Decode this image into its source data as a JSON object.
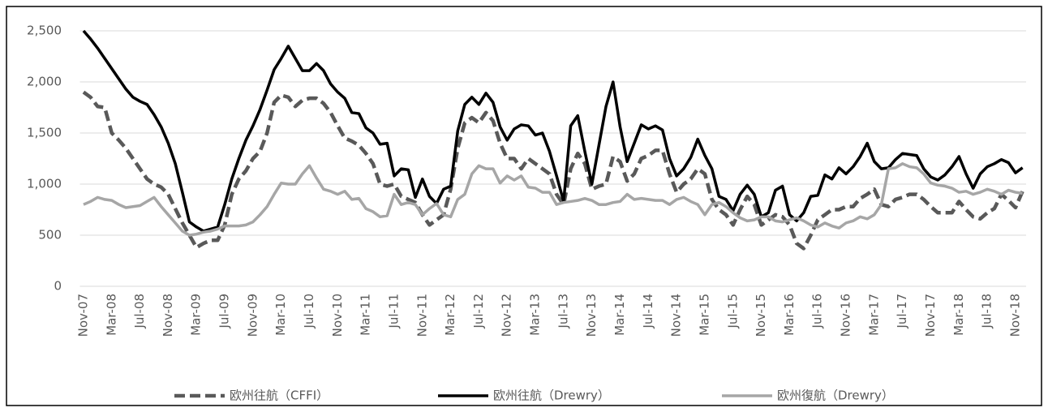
{
  "chart_data": {
    "type": "line",
    "categories": [
      "Nov-07",
      null,
      null,
      null,
      "Mar-08",
      null,
      null,
      null,
      "Jul-08",
      null,
      null,
      null,
      "Nov-08",
      null,
      null,
      null,
      "Mar-09",
      null,
      null,
      null,
      "Jul-09",
      null,
      null,
      null,
      "Nov-09",
      null,
      null,
      null,
      "Mar-10",
      null,
      null,
      null,
      "Jul-10",
      null,
      null,
      null,
      "Nov-10",
      null,
      null,
      null,
      "Mar-11",
      null,
      null,
      null,
      "Jul-11",
      null,
      null,
      null,
      "Nov-11",
      null,
      null,
      null,
      "Mar-12",
      null,
      null,
      null,
      "Jul-12",
      null,
      null,
      null,
      "Nov-12",
      null,
      null,
      null,
      "Mar-13",
      null,
      null,
      null,
      "Jul-13",
      null,
      null,
      null,
      "Nov-13",
      null,
      null,
      null,
      "Mar-14",
      null,
      null,
      null,
      "Jul-14",
      null,
      null,
      null,
      "Nov-14",
      null,
      null,
      null,
      "Mar-15",
      null,
      null,
      null,
      "Jul-15",
      null,
      null,
      null,
      "Nov-15",
      null,
      null,
      null,
      "Mar-16",
      null,
      null,
      null,
      "Jul-16",
      null,
      null,
      null,
      "Nov-16",
      null,
      null,
      null,
      "Mar-17",
      null,
      null,
      null,
      "Jul-17",
      null,
      null,
      null,
      "Nov-17",
      null,
      null,
      null,
      "Mar-18",
      null,
      null,
      null,
      "Jul-18",
      null,
      null,
      null,
      "Nov-18",
      null
    ],
    "series": [
      {
        "name": "欧州往航（CFFI）",
        "color": "#595959",
        "dash": true,
        "values": [
          1900,
          1850,
          1760,
          1750,
          1500,
          1430,
          1350,
          1250,
          1150,
          1050,
          1000,
          970,
          900,
          760,
          620,
          500,
          380,
          420,
          450,
          450,
          600,
          900,
          1050,
          1130,
          1250,
          1320,
          1500,
          1800,
          1870,
          1850,
          1760,
          1820,
          1840,
          1840,
          1790,
          1700,
          1570,
          1450,
          1420,
          1380,
          1300,
          1200,
          1000,
          980,
          1000,
          880,
          850,
          820,
          700,
          600,
          650,
          700,
          950,
          1350,
          1600,
          1650,
          1600,
          1700,
          1620,
          1400,
          1250,
          1250,
          1150,
          1250,
          1200,
          1150,
          1100,
          900,
          800,
          1150,
          1300,
          1200,
          950,
          980,
          1000,
          1270,
          1220,
          1030,
          1100,
          1250,
          1280,
          1330,
          1330,
          1100,
          920,
          1000,
          1050,
          1150,
          1100,
          850,
          750,
          700,
          600,
          750,
          880,
          800,
          600,
          650,
          700,
          680,
          600,
          420,
          370,
          500,
          650,
          700,
          750,
          750,
          780,
          780,
          860,
          900,
          950,
          800,
          780,
          850,
          870,
          900,
          900,
          850,
          780,
          720,
          720,
          720,
          830,
          750,
          680,
          660,
          720,
          760,
          900,
          840,
          770,
          930
        ]
      },
      {
        "name": "欧州往航（Drewry）",
        "color": "#000000",
        "dash": false,
        "values": [
          2500,
          2420,
          2330,
          2230,
          2130,
          2030,
          1930,
          1850,
          1810,
          1780,
          1680,
          1560,
          1400,
          1200,
          920,
          630,
          580,
          540,
          560,
          580,
          800,
          1050,
          1250,
          1430,
          1570,
          1730,
          1920,
          2120,
          2230,
          2350,
          2230,
          2110,
          2110,
          2180,
          2110,
          1980,
          1900,
          1840,
          1700,
          1690,
          1550,
          1500,
          1390,
          1400,
          1080,
          1150,
          1140,
          870,
          1050,
          880,
          810,
          950,
          980,
          1520,
          1780,
          1850,
          1780,
          1890,
          1800,
          1560,
          1430,
          1540,
          1580,
          1570,
          1480,
          1500,
          1320,
          1080,
          830,
          1570,
          1670,
          1320,
          1000,
          1380,
          1760,
          2000,
          1560,
          1220,
          1400,
          1580,
          1540,
          1570,
          1530,
          1250,
          1080,
          1150,
          1260,
          1440,
          1280,
          1150,
          880,
          850,
          740,
          900,
          990,
          900,
          680,
          720,
          940,
          980,
          700,
          640,
          720,
          880,
          890,
          1090,
          1050,
          1160,
          1100,
          1170,
          1270,
          1400,
          1220,
          1150,
          1160,
          1240,
          1300,
          1290,
          1280,
          1150,
          1070,
          1040,
          1090,
          1170,
          1270,
          1100,
          960,
          1100,
          1170,
          1200,
          1240,
          1210,
          1110,
          1160
        ]
      },
      {
        "name": "欧州復航（Drewry）",
        "color": "#a6a6a6",
        "dash": false,
        "values": [
          800,
          830,
          870,
          850,
          840,
          800,
          770,
          780,
          790,
          830,
          870,
          780,
          700,
          620,
          540,
          500,
          510,
          530,
          540,
          560,
          590,
          590,
          590,
          600,
          630,
          700,
          780,
          900,
          1010,
          1000,
          1000,
          1100,
          1180,
          1060,
          950,
          930,
          900,
          930,
          850,
          860,
          760,
          730,
          680,
          690,
          900,
          800,
          820,
          800,
          700,
          760,
          810,
          700,
          680,
          850,
          900,
          1100,
          1180,
          1150,
          1150,
          1010,
          1080,
          1040,
          1080,
          970,
          960,
          920,
          920,
          800,
          820,
          830,
          840,
          860,
          840,
          800,
          800,
          820,
          830,
          900,
          850,
          860,
          850,
          840,
          840,
          800,
          850,
          870,
          830,
          800,
          700,
          800,
          820,
          780,
          720,
          670,
          640,
          650,
          680,
          680,
          640,
          630,
          650,
          670,
          640,
          600,
          580,
          620,
          590,
          570,
          620,
          640,
          680,
          660,
          700,
          800,
          1150,
          1160,
          1200,
          1170,
          1160,
          1100,
          1010,
          990,
          980,
          960,
          920,
          930,
          900,
          920,
          950,
          930,
          900,
          940,
          920,
          910
        ]
      }
    ],
    "ylim": [
      0,
      2500
    ],
    "yticks": [
      0,
      500,
      {
        "value": 1000,
        "label": "1,000"
      },
      {
        "value": 1500,
        "label": "1,500"
      },
      {
        "value": 2000,
        "label": "2,000"
      },
      {
        "value": 2500,
        "label": "2,500"
      }
    ],
    "grid": true
  }
}
